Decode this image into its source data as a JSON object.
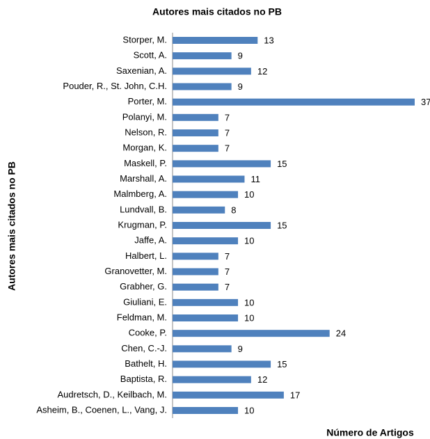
{
  "chart_data": {
    "type": "bar",
    "orientation": "horizontal",
    "title": "Autores mais citados no PB",
    "y_label": "Autores mais citados no PB",
    "x_label": "Número de Artigos",
    "categories": [
      "Storper, M.",
      "Scott, A.",
      "Saxenian, A.",
      "Pouder, R., St. John, C.H.",
      "Porter, M.",
      "Polanyi, M.",
      "Nelson, R.",
      "Morgan, K.",
      "Maskell, P.",
      "Marshall, A.",
      "Malmberg, A.",
      "Lundvall, B.",
      "Krugman, P.",
      "Jaffe, A.",
      "Halbert, L.",
      "Granovetter, M.",
      "Grabher, G.",
      "Giuliani, E.",
      "Feldman, M.",
      "Cooke, P.",
      "Chen, C.-J.",
      "Bathelt, H.",
      "Baptista, R.",
      "Audretsch, D., Keilbach, M.",
      "Asheim, B., Coenen, L., Vang, J."
    ],
    "values": [
      13,
      9,
      12,
      9,
      37,
      7,
      7,
      7,
      15,
      11,
      10,
      8,
      15,
      10,
      7,
      7,
      7,
      10,
      10,
      24,
      9,
      15,
      12,
      17,
      10
    ],
    "color": "#4f81bd",
    "xlim": [
      0,
      37
    ]
  }
}
